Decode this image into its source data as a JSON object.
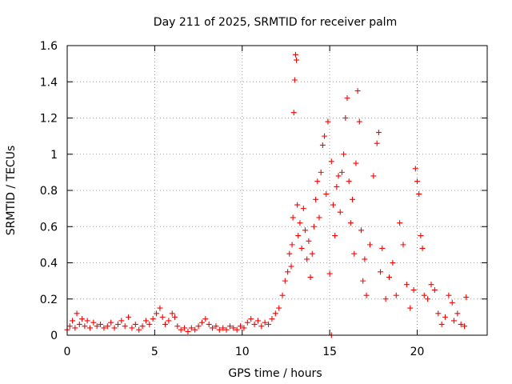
{
  "chart_data": {
    "type": "scatter",
    "title": "Day 211 of 2025, SRMTID for receiver palm",
    "xlabel": "GPS time / hours",
    "ylabel": "SRMTID / TECUs",
    "xlim": [
      0,
      24
    ],
    "ylim": [
      0,
      1.6
    ],
    "xticks": [
      0,
      5,
      10,
      15,
      20
    ],
    "xtick_labels": [
      "0",
      "5",
      "10",
      "15",
      "20"
    ],
    "yticks": [
      0,
      0.2,
      0.4,
      0.6,
      0.8,
      1.0,
      1.2,
      1.4,
      1.6
    ],
    "ytick_labels": [
      "0",
      "0.2",
      "0.4",
      "0.6",
      "0.8",
      "1",
      "1.2",
      "1.4",
      "1.6"
    ],
    "grid": true,
    "marker": "plus",
    "color": "#ff0000",
    "series": [
      {
        "name": "SRMTID",
        "points": [
          [
            0.0,
            0.03
          ],
          [
            0.15,
            0.05
          ],
          [
            0.3,
            0.08
          ],
          [
            0.45,
            0.04
          ],
          [
            0.55,
            0.12
          ],
          [
            0.7,
            0.06
          ],
          [
            0.85,
            0.09
          ],
          [
            1.0,
            0.05
          ],
          [
            1.15,
            0.08
          ],
          [
            1.3,
            0.04
          ],
          [
            1.5,
            0.07
          ],
          [
            1.7,
            0.05
          ],
          [
            1.9,
            0.06
          ],
          [
            2.1,
            0.04
          ],
          [
            2.3,
            0.05
          ],
          [
            2.5,
            0.07
          ],
          [
            2.7,
            0.04
          ],
          [
            2.9,
            0.06
          ],
          [
            3.1,
            0.08
          ],
          [
            3.3,
            0.05
          ],
          [
            3.5,
            0.1
          ],
          [
            3.7,
            0.04
          ],
          [
            3.9,
            0.06
          ],
          [
            4.1,
            0.03
          ],
          [
            4.3,
            0.05
          ],
          [
            4.5,
            0.08
          ],
          [
            4.7,
            0.06
          ],
          [
            4.9,
            0.09
          ],
          [
            5.1,
            0.12
          ],
          [
            5.3,
            0.15
          ],
          [
            5.45,
            0.1
          ],
          [
            5.6,
            0.06
          ],
          [
            5.8,
            0.08
          ],
          [
            6.0,
            0.12
          ],
          [
            6.15,
            0.1
          ],
          [
            6.3,
            0.05
          ],
          [
            6.5,
            0.03
          ],
          [
            6.7,
            0.04
          ],
          [
            6.9,
            0.02
          ],
          [
            7.1,
            0.04
          ],
          [
            7.3,
            0.03
          ],
          [
            7.5,
            0.05
          ],
          [
            7.7,
            0.07
          ],
          [
            7.9,
            0.09
          ],
          [
            8.1,
            0.06
          ],
          [
            8.3,
            0.04
          ],
          [
            8.5,
            0.05
          ],
          [
            8.7,
            0.03
          ],
          [
            8.9,
            0.04
          ],
          [
            9.1,
            0.03
          ],
          [
            9.3,
            0.05
          ],
          [
            9.5,
            0.04
          ],
          [
            9.7,
            0.03
          ],
          [
            9.9,
            0.05
          ],
          [
            10.1,
            0.04
          ],
          [
            10.3,
            0.07
          ],
          [
            10.5,
            0.09
          ],
          [
            10.7,
            0.06
          ],
          [
            10.9,
            0.08
          ],
          [
            11.1,
            0.05
          ],
          [
            11.3,
            0.07
          ],
          [
            11.5,
            0.06
          ],
          [
            11.7,
            0.09
          ],
          [
            11.9,
            0.12
          ],
          [
            12.1,
            0.15
          ],
          [
            12.3,
            0.22
          ],
          [
            12.45,
            0.3
          ],
          [
            12.6,
            0.35
          ],
          [
            12.7,
            0.45
          ],
          [
            12.8,
            0.38
          ],
          [
            12.85,
            0.5
          ],
          [
            12.9,
            0.65
          ],
          [
            12.95,
            1.23
          ],
          [
            13.0,
            1.41
          ],
          [
            13.05,
            1.55
          ],
          [
            13.1,
            1.52
          ],
          [
            13.15,
            0.72
          ],
          [
            13.2,
            0.55
          ],
          [
            13.3,
            0.62
          ],
          [
            13.4,
            0.48
          ],
          [
            13.5,
            0.7
          ],
          [
            13.6,
            0.58
          ],
          [
            13.7,
            0.42
          ],
          [
            13.8,
            0.52
          ],
          [
            13.9,
            0.32
          ],
          [
            14.0,
            0.45
          ],
          [
            14.1,
            0.6
          ],
          [
            14.2,
            0.75
          ],
          [
            14.3,
            0.85
          ],
          [
            14.4,
            0.65
          ],
          [
            14.5,
            0.9
          ],
          [
            14.6,
            1.05
          ],
          [
            14.7,
            1.1
          ],
          [
            14.8,
            0.78
          ],
          [
            14.9,
            1.18
          ],
          [
            15.0,
            0.34
          ],
          [
            15.1,
            0.96
          ],
          [
            15.2,
            0.72
          ],
          [
            15.3,
            0.55
          ],
          [
            15.4,
            0.82
          ],
          [
            15.5,
            0.88
          ],
          [
            15.6,
            0.68
          ],
          [
            15.7,
            0.9
          ],
          [
            15.8,
            1.0
          ],
          [
            15.9,
            1.2
          ],
          [
            16.0,
            1.31
          ],
          [
            16.1,
            0.85
          ],
          [
            16.2,
            0.62
          ],
          [
            16.3,
            0.75
          ],
          [
            16.4,
            0.45
          ],
          [
            16.5,
            0.95
          ],
          [
            16.6,
            1.35
          ],
          [
            16.7,
            1.18
          ],
          [
            16.8,
            0.58
          ],
          [
            16.9,
            0.3
          ],
          [
            17.0,
            0.42
          ],
          [
            17.1,
            0.22
          ],
          [
            17.3,
            0.5
          ],
          [
            17.5,
            0.88
          ],
          [
            17.7,
            1.06
          ],
          [
            17.8,
            1.12
          ],
          [
            17.9,
            0.35
          ],
          [
            18.0,
            0.48
          ],
          [
            18.2,
            0.2
          ],
          [
            18.4,
            0.32
          ],
          [
            18.6,
            0.4
          ],
          [
            18.8,
            0.22
          ],
          [
            19.0,
            0.62
          ],
          [
            19.2,
            0.5
          ],
          [
            19.4,
            0.28
          ],
          [
            19.6,
            0.15
          ],
          [
            19.8,
            0.25
          ],
          [
            19.9,
            0.92
          ],
          [
            20.0,
            0.85
          ],
          [
            20.1,
            0.78
          ],
          [
            20.2,
            0.55
          ],
          [
            20.3,
            0.48
          ],
          [
            20.4,
            0.22
          ],
          [
            20.6,
            0.2
          ],
          [
            20.8,
            0.28
          ],
          [
            21.0,
            0.25
          ],
          [
            21.2,
            0.12
          ],
          [
            21.4,
            0.06
          ],
          [
            21.6,
            0.1
          ],
          [
            21.8,
            0.22
          ],
          [
            22.0,
            0.18
          ],
          [
            22.1,
            0.08
          ],
          [
            22.3,
            0.12
          ],
          [
            22.5,
            0.06
          ],
          [
            22.7,
            0.05
          ],
          [
            15.1,
            0.0
          ],
          [
            22.8,
            0.21
          ]
        ]
      }
    ]
  }
}
